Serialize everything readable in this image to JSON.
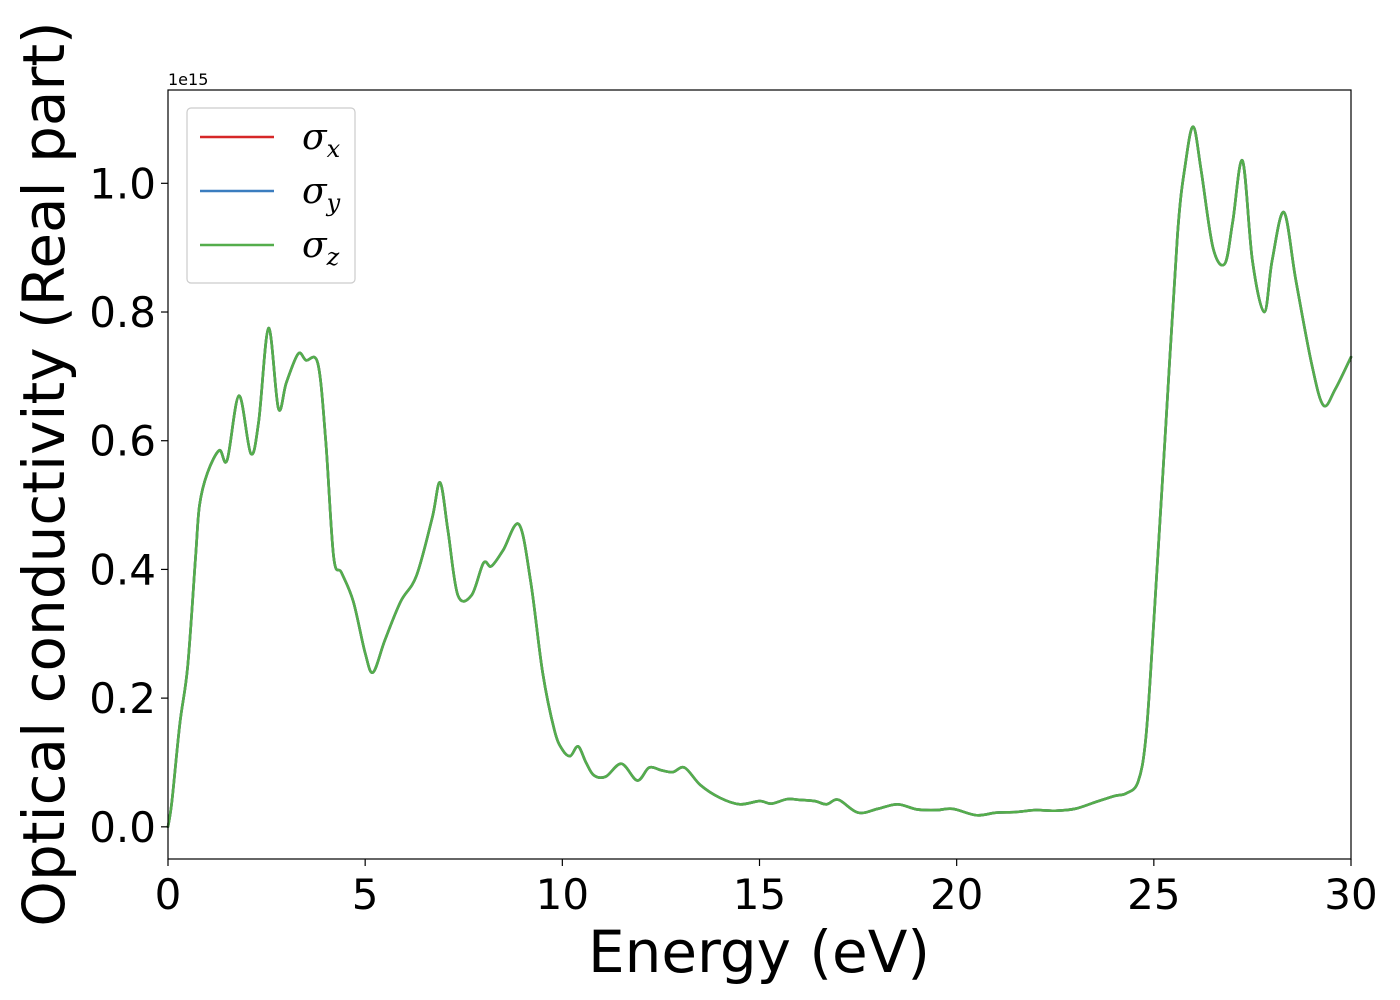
{
  "chart_data": {
    "type": "line",
    "title": "",
    "xlabel": "Energy (eV)",
    "ylabel": "Optical conductivity (Real part)",
    "y_offset_label": "1e15",
    "xlim": [
      0,
      30
    ],
    "ylim": [
      -0.05,
      1.145
    ],
    "xticks": [
      0,
      5,
      10,
      15,
      20,
      25,
      30
    ],
    "xtick_labels": [
      "0",
      "5",
      "10",
      "15",
      "20",
      "25",
      "30"
    ],
    "yticks": [
      0.0,
      0.2,
      0.4,
      0.6,
      0.8,
      1.0
    ],
    "ytick_labels": [
      "0.0",
      "0.2",
      "0.4",
      "0.6",
      "0.8",
      "1.0"
    ],
    "grid": false,
    "legend_position": "top-left",
    "series": [
      {
        "name_base": "σ",
        "name_sub": "x",
        "color": "#d62728"
      },
      {
        "name_base": "σ",
        "name_sub": "y",
        "color": "#3b7dbf"
      },
      {
        "name_base": "σ",
        "name_sub": "z",
        "color": "#54ad4c"
      }
    ],
    "x": [
      0,
      0.1,
      0.3,
      0.5,
      0.7,
      0.8,
      1.0,
      1.3,
      1.5,
      1.8,
      2.1,
      2.3,
      2.55,
      2.8,
      3.0,
      3.3,
      3.5,
      3.8,
      4.0,
      4.2,
      4.4,
      4.7,
      5.0,
      5.2,
      5.5,
      5.9,
      6.3,
      6.7,
      6.9,
      7.1,
      7.35,
      7.7,
      8.0,
      8.2,
      8.5,
      8.9,
      9.2,
      9.5,
      9.8,
      10.0,
      10.2,
      10.4,
      10.6,
      10.8,
      11.1,
      11.5,
      11.9,
      12.2,
      12.5,
      12.8,
      13.1,
      13.5,
      14.0,
      14.5,
      15.0,
      15.3,
      15.7,
      16.0,
      16.4,
      16.7,
      17.0,
      17.5,
      18.0,
      18.5,
      19.0,
      19.5,
      19.9,
      20.5,
      21.0,
      21.5,
      22.0,
      22.5,
      23.0,
      23.5,
      24.0,
      24.3,
      24.6,
      24.8,
      25.0,
      25.3,
      25.6,
      25.8,
      26.0,
      26.2,
      26.5,
      26.8,
      27.0,
      27.25,
      27.5,
      27.8,
      28.0,
      28.3,
      28.6,
      29.0,
      29.3,
      29.6,
      30.0
    ],
    "values": [
      0.0,
      0.04,
      0.16,
      0.25,
      0.42,
      0.5,
      0.55,
      0.585,
      0.57,
      0.67,
      0.58,
      0.63,
      0.775,
      0.65,
      0.69,
      0.735,
      0.725,
      0.72,
      0.6,
      0.42,
      0.395,
      0.35,
      0.27,
      0.24,
      0.29,
      0.35,
      0.39,
      0.48,
      0.535,
      0.46,
      0.36,
      0.36,
      0.41,
      0.405,
      0.43,
      0.47,
      0.38,
      0.24,
      0.15,
      0.12,
      0.11,
      0.125,
      0.1,
      0.08,
      0.078,
      0.098,
      0.072,
      0.092,
      0.088,
      0.085,
      0.092,
      0.065,
      0.045,
      0.035,
      0.04,
      0.036,
      0.043,
      0.042,
      0.04,
      0.035,
      0.042,
      0.022,
      0.028,
      0.035,
      0.027,
      0.026,
      0.028,
      0.018,
      0.022,
      0.023,
      0.026,
      0.025,
      0.028,
      0.038,
      0.048,
      0.052,
      0.07,
      0.14,
      0.32,
      0.62,
      0.92,
      1.03,
      1.088,
      1.02,
      0.9,
      0.875,
      0.94,
      1.035,
      0.88,
      0.8,
      0.88,
      0.955,
      0.85,
      0.72,
      0.655,
      0.68,
      0.73
    ]
  }
}
